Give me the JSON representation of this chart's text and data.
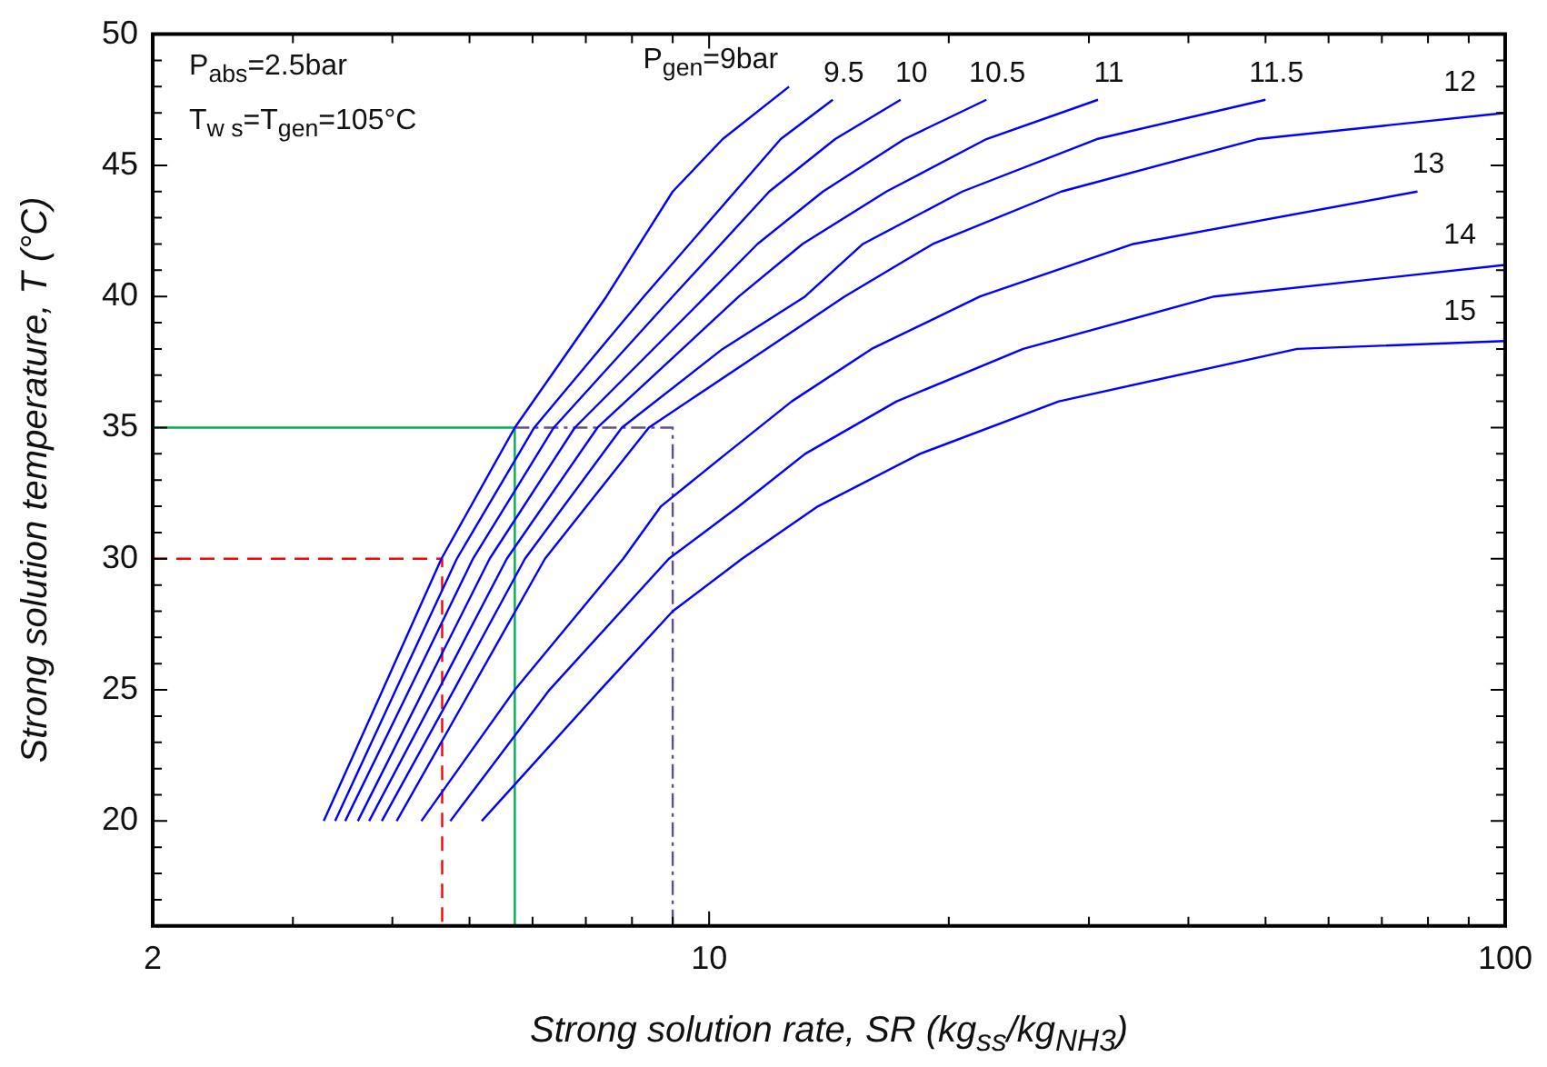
{
  "chart_data": {
    "type": "line",
    "xlabel": "Strong solution rate, SR (kg$_{ss}$/kg$_{NH3}$)",
    "ylabel": "Strong solution temperature, T (°C)",
    "log": "x",
    "xlim": [
      2,
      100
    ],
    "xticks": [
      2,
      {
        "value": 3,
        "label": null
      },
      {
        "value": 4,
        "label": null
      },
      {
        "value": 5,
        "label": null
      },
      {
        "value": 6,
        "label": null
      },
      {
        "value": 7,
        "label": null
      },
      {
        "value": 8,
        "label": null
      },
      {
        "value": 9,
        "label": null
      },
      10,
      {
        "value": 20,
        "label": null
      },
      {
        "value": 30,
        "label": null
      },
      {
        "value": 40,
        "label": null
      },
      {
        "value": 50,
        "label": null
      },
      {
        "value": 60,
        "label": null
      },
      {
        "value": 70,
        "label": null
      },
      {
        "value": 80,
        "label": null
      },
      {
        "value": 90,
        "label": null
      },
      100
    ],
    "ylim": [
      16,
      50
    ],
    "yticks": [
      {
        "value": 17,
        "label": null
      },
      {
        "value": 18,
        "label": null
      },
      {
        "value": 19,
        "label": null
      },
      20,
      {
        "value": 21,
        "label": null
      },
      {
        "value": 22,
        "label": null
      },
      {
        "value": 23,
        "label": null
      },
      {
        "value": 24,
        "label": null
      },
      25,
      {
        "value": 26,
        "label": null
      },
      {
        "value": 27,
        "label": null
      },
      {
        "value": 28,
        "label": null
      },
      {
        "value": 29,
        "label": null
      },
      30,
      {
        "value": 31,
        "label": null
      },
      {
        "value": 32,
        "label": null
      },
      {
        "value": 33,
        "label": null
      },
      {
        "value": 34,
        "label": null
      },
      35,
      {
        "value": 36,
        "label": null
      },
      {
        "value": 37,
        "label": null
      },
      {
        "value": 38,
        "label": null
      },
      {
        "value": 39,
        "label": null
      },
      40,
      {
        "value": 41,
        "label": null
      },
      {
        "value": 42,
        "label": null
      },
      {
        "value": 43,
        "label": null
      },
      {
        "value": 44,
        "label": null
      },
      45,
      {
        "value": 46,
        "label": null
      },
      {
        "value": 47,
        "label": null
      },
      {
        "value": 48,
        "label": null
      },
      {
        "value": 49,
        "label": null
      },
      50
    ],
    "marker": "none",
    "annotations": [
      "P$_{abs}$=2.5bar",
      "T$_{w s}$=T$_{gen}$=105°C"
    ],
    "series": [
      {
        "name": "P$_{gen}$=9bar",
        "color": "#0000ff",
        "x": [
          3.28,
          3.89,
          4.61,
          5.7,
          7.43,
          9.0,
          10.4,
          12.6
        ],
        "values": [
          20,
          25,
          30,
          35,
          40,
          44,
          46,
          48
        ]
      },
      {
        "name": "9.5",
        "color": "#0000ff",
        "x": [
          3.39,
          4.04,
          4.82,
          6.03,
          8.28,
          12.3,
          14.3
        ],
        "values": [
          20,
          25,
          30,
          35,
          40,
          46,
          47.5
        ]
      },
      {
        "name": "10",
        "color": "#0000ff",
        "x": [
          3.49,
          4.2,
          5.05,
          6.38,
          9.0,
          11.9,
          14.4,
          17.4
        ],
        "values": [
          20,
          25,
          30,
          35,
          40,
          44,
          46,
          47.5
        ]
      },
      {
        "name": "10.5",
        "color": "#0000ff",
        "x": [
          3.62,
          4.38,
          5.3,
          6.78,
          9.9,
          11.5,
          13.9,
          17.6,
          22.3
        ],
        "values": [
          20,
          25,
          30,
          35,
          40,
          42,
          44,
          46,
          47.5
        ]
      },
      {
        "name": "11",
        "color": "#0000ff",
        "x": [
          3.74,
          4.57,
          5.57,
          7.24,
          10.9,
          13.1,
          16.7,
          22.3,
          30.8
        ],
        "values": [
          20,
          25,
          30,
          35,
          40,
          42,
          44,
          46,
          47.5
        ]
      },
      {
        "name": "11.5",
        "color": "#0000ff",
        "x": [
          3.88,
          4.78,
          5.87,
          7.77,
          10.4,
          13.2,
          15.6,
          20.8,
          30.7,
          50
        ],
        "values": [
          20,
          25,
          30,
          35,
          38,
          40,
          42,
          44,
          46,
          47.5
        ]
      },
      {
        "name": "12",
        "color": "#0000ff",
        "x": [
          4.05,
          5.02,
          6.22,
          8.4,
          11.8,
          14.8,
          19.1,
          27.7,
          48.8,
          100
        ],
        "values": [
          20,
          25,
          30,
          35,
          38,
          40,
          42,
          44,
          46,
          47
        ]
      },
      {
        "name": "13",
        "color": "#0000ff",
        "x": [
          4.35,
          5.7,
          7.8,
          8.7,
          10.5,
          12.7,
          16,
          21.9,
          34.1,
          77.6
        ],
        "values": [
          20,
          25,
          30,
          32,
          34,
          36,
          38,
          40,
          42,
          44
        ]
      },
      {
        "name": "14",
        "color": "#0000ff",
        "x": [
          4.73,
          6.3,
          8.9,
          10.9,
          13.2,
          17.2,
          24.8,
          43.1,
          100
        ],
        "values": [
          20,
          25,
          30,
          32,
          34,
          36,
          38,
          40,
          41.2
        ]
      },
      {
        "name": "15",
        "color": "#0000ff",
        "x": [
          5.18,
          7.3,
          9.0,
          11.0,
          13.7,
          18.4,
          27.5,
          54.8,
          100
        ],
        "values": [
          20,
          25,
          28,
          30,
          32,
          34,
          36,
          38,
          38.3
        ]
      },
      {
        "color": "#ff0000",
        "line_style": "dashed",
        "x": [
          2,
          4.62,
          4.62
        ],
        "values": [
          30,
          30,
          16
        ]
      },
      {
        "color": "#00b050",
        "line_style": "solid",
        "x": [
          2,
          5.7,
          5.7
        ],
        "values": [
          35,
          35,
          16
        ]
      },
      {
        "color": "#5f4f8f",
        "line_style": "dotted",
        "x": [
          5.7,
          9,
          9
        ],
        "values": [
          35,
          35,
          16
        ]
      }
    ]
  }
}
